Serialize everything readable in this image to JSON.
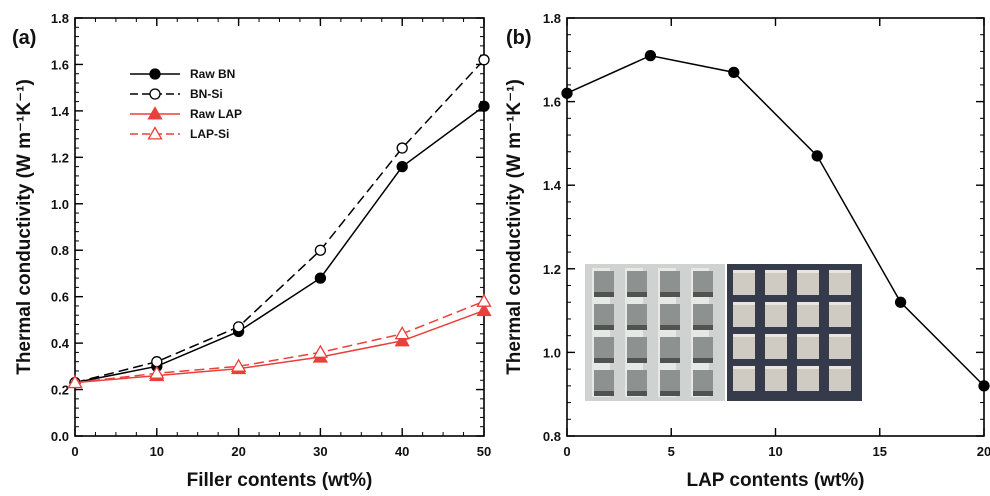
{
  "figure": {
    "inset_photo_left_name": "photo-unfilled-samples",
    "inset_photo_right_name": "photo-coated-samples"
  },
  "chart_data": [
    {
      "panel_label": "(a)",
      "type": "line",
      "xlabel": "Filler contents (wt%)",
      "ylabel": "Thermal conductivity (W m⁻¹K⁻¹)",
      "xlim": [
        0,
        50
      ],
      "ylim": [
        0.0,
        1.8
      ],
      "xticks": [
        0,
        10,
        20,
        30,
        40,
        50
      ],
      "yticks": [
        0.0,
        0.2,
        0.4,
        0.6,
        0.8,
        1.0,
        1.2,
        1.4,
        1.6,
        1.8
      ],
      "ytick_labels": [
        "0.0",
        "0.2",
        "0.4",
        "0.6",
        "0.8",
        "1.0",
        "1.2",
        "1.4",
        "1.6",
        "1.8"
      ],
      "grid": false,
      "legend_position": "top-left",
      "x": [
        0,
        10,
        20,
        30,
        40,
        50
      ],
      "series": [
        {
          "name": "Raw BN",
          "values": [
            0.23,
            0.3,
            0.45,
            0.68,
            1.16,
            1.42
          ],
          "color": "#000000",
          "dash": "solid",
          "marker": "circle-filled"
        },
        {
          "name": "BN-Si",
          "values": [
            0.23,
            0.32,
            0.47,
            0.8,
            1.24,
            1.62
          ],
          "color": "#000000",
          "dash": "dashed",
          "marker": "circle-open"
        },
        {
          "name": "Raw LAP",
          "values": [
            0.23,
            0.26,
            0.29,
            0.34,
            0.41,
            0.54
          ],
          "color": "#e8403a",
          "dash": "solid",
          "marker": "triangle-filled"
        },
        {
          "name": "LAP-Si",
          "values": [
            0.23,
            0.27,
            0.3,
            0.36,
            0.44,
            0.58
          ],
          "color": "#e8403a",
          "dash": "dashed",
          "marker": "triangle-open"
        }
      ]
    },
    {
      "panel_label": "(b)",
      "type": "line",
      "xlabel": "LAP contents (wt%)",
      "ylabel": "Thermal conductivity (W m⁻¹K⁻¹)",
      "xlim": [
        0,
        20
      ],
      "ylim": [
        0.8,
        1.8
      ],
      "xticks": [
        0,
        5,
        10,
        15,
        20
      ],
      "yticks": [
        0.8,
        1.0,
        1.2,
        1.4,
        1.6,
        1.8
      ],
      "ytick_labels": [
        "0.8",
        "1.0",
        "1.2",
        "1.4",
        "1.6",
        "1.8"
      ],
      "grid": false,
      "x": [
        0,
        4,
        8,
        12,
        16,
        20
      ],
      "series": [
        {
          "values": [
            1.62,
            1.71,
            1.67,
            1.47,
            1.12,
            0.92
          ],
          "color": "#000000",
          "dash": "solid",
          "marker": "circle-filled"
        }
      ]
    }
  ]
}
